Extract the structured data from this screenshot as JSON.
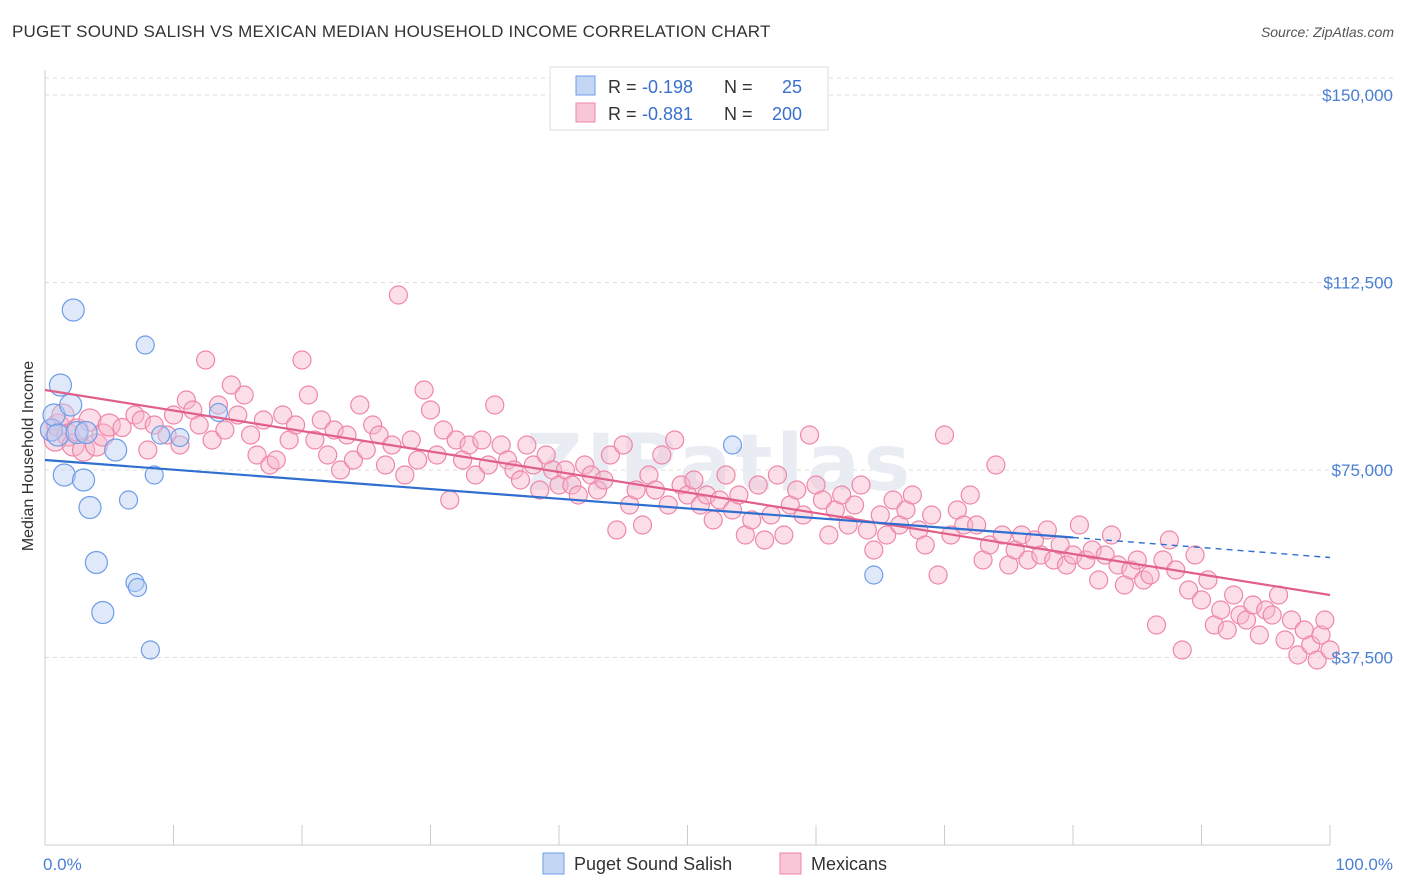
{
  "header": {
    "title": "PUGET SOUND SALISH VS MEXICAN MEDIAN HOUSEHOLD INCOME CORRELATION CHART",
    "source": "Source: ZipAtlas.com"
  },
  "watermark": "ZIPatlas",
  "legend": {
    "rows": [
      {
        "r_label": "R =",
        "r_value": "-0.198",
        "n_label": "N =",
        "n_value": "25"
      },
      {
        "r_label": "R =",
        "r_value": "-0.881",
        "n_label": "N =",
        "n_value": "200"
      }
    ]
  },
  "bottom_legend": [
    "Puget Sound Salish",
    "Mexicans"
  ],
  "chart_data": {
    "type": "scatter",
    "title": "PUGET SOUND SALISH VS MEXICAN MEDIAN HOUSEHOLD INCOME CORRELATION CHART",
    "ylabel": "Median Household Income",
    "xlim": [
      0,
      100
    ],
    "ylim": [
      0,
      155000
    ],
    "x_tick_labels": [
      "0.0%",
      "100.0%"
    ],
    "y_ticks": [
      37500,
      75000,
      112500,
      150000
    ],
    "y_tick_labels": [
      "$37,500",
      "$75,000",
      "$112,500",
      "$150,000"
    ],
    "grid": true,
    "colors": {
      "salish": "#6f9de8",
      "mexicans": "#ef86a8",
      "salish_line": "#2f6fd0",
      "mexicans_line": "#e0608a",
      "axis_text": "#4a7fd4"
    },
    "series": [
      {
        "name": "Puget Sound Salish",
        "trend": {
          "x": [
            0,
            80
          ],
          "y": [
            77000,
            61500
          ],
          "dashed_to": [
            100,
            57500
          ]
        },
        "points": [
          [
            0.5,
            83000
          ],
          [
            0.7,
            86000
          ],
          [
            1.0,
            82000
          ],
          [
            1.2,
            92000
          ],
          [
            1.5,
            74000
          ],
          [
            2.0,
            88000
          ],
          [
            2.2,
            107000
          ],
          [
            2.5,
            82500
          ],
          [
            3.0,
            73000
          ],
          [
            3.2,
            82500
          ],
          [
            3.5,
            67500
          ],
          [
            4.0,
            56500
          ],
          [
            4.5,
            46500
          ],
          [
            5.5,
            79000
          ],
          [
            6.5,
            69000
          ],
          [
            7.0,
            52500
          ],
          [
            7.2,
            51500
          ],
          [
            7.8,
            100000
          ],
          [
            8.2,
            39000
          ],
          [
            8.5,
            74000
          ],
          [
            9.0,
            82000
          ],
          [
            10.5,
            81500
          ],
          [
            13.5,
            86500
          ],
          [
            53.5,
            80000
          ],
          [
            64.5,
            54000
          ]
        ]
      },
      {
        "name": "Mexicans",
        "trend": {
          "x": [
            0,
            100
          ],
          "y": [
            91000,
            50000
          ]
        },
        "points": [
          [
            0.5,
            83000
          ],
          [
            0.8,
            81000
          ],
          [
            1.0,
            84000
          ],
          [
            1.4,
            86000
          ],
          [
            1.8,
            82000
          ],
          [
            2.2,
            80000
          ],
          [
            2.5,
            83000
          ],
          [
            3.0,
            79000
          ],
          [
            3.5,
            85000
          ],
          [
            4.0,
            80000
          ],
          [
            4.5,
            82000
          ],
          [
            5.0,
            84000
          ],
          [
            6.0,
            83500
          ],
          [
            7.0,
            86000
          ],
          [
            7.5,
            85000
          ],
          [
            8.0,
            79000
          ],
          [
            8.5,
            84000
          ],
          [
            9.5,
            82000
          ],
          [
            10.0,
            86000
          ],
          [
            10.5,
            80000
          ],
          [
            11.0,
            89000
          ],
          [
            11.5,
            87000
          ],
          [
            12.0,
            84000
          ],
          [
            12.5,
            97000
          ],
          [
            13.0,
            81000
          ],
          [
            13.5,
            88000
          ],
          [
            14.0,
            83000
          ],
          [
            14.5,
            92000
          ],
          [
            15.0,
            86000
          ],
          [
            15.5,
            90000
          ],
          [
            16.0,
            82000
          ],
          [
            16.5,
            78000
          ],
          [
            17.0,
            85000
          ],
          [
            17.5,
            76000
          ],
          [
            18.0,
            77000
          ],
          [
            18.5,
            86000
          ],
          [
            19.0,
            81000
          ],
          [
            19.5,
            84000
          ],
          [
            20.0,
            97000
          ],
          [
            20.5,
            90000
          ],
          [
            21.0,
            81000
          ],
          [
            21.5,
            85000
          ],
          [
            22.0,
            78000
          ],
          [
            22.5,
            83000
          ],
          [
            23.0,
            75000
          ],
          [
            23.5,
            82000
          ],
          [
            24.0,
            77000
          ],
          [
            24.5,
            88000
          ],
          [
            25.0,
            79000
          ],
          [
            25.5,
            84000
          ],
          [
            26.0,
            82000
          ],
          [
            26.5,
            76000
          ],
          [
            27.0,
            80000
          ],
          [
            27.5,
            110000
          ],
          [
            28.0,
            74000
          ],
          [
            28.5,
            81000
          ],
          [
            29.0,
            77000
          ],
          [
            29.5,
            91000
          ],
          [
            30.0,
            87000
          ],
          [
            30.5,
            78000
          ],
          [
            31.0,
            83000
          ],
          [
            31.5,
            69000
          ],
          [
            32.0,
            81000
          ],
          [
            32.5,
            77000
          ],
          [
            33.0,
            80000
          ],
          [
            33.5,
            74000
          ],
          [
            34.0,
            81000
          ],
          [
            34.5,
            76000
          ],
          [
            35.0,
            88000
          ],
          [
            35.5,
            80000
          ],
          [
            36.0,
            77000
          ],
          [
            36.5,
            75000
          ],
          [
            37.0,
            73000
          ],
          [
            37.5,
            80000
          ],
          [
            38.0,
            76000
          ],
          [
            38.5,
            71000
          ],
          [
            39.0,
            78000
          ],
          [
            39.5,
            75000
          ],
          [
            40.0,
            72000
          ],
          [
            40.5,
            75000
          ],
          [
            41.0,
            72000
          ],
          [
            41.5,
            70000
          ],
          [
            42.0,
            76000
          ],
          [
            42.5,
            74000
          ],
          [
            43.0,
            71000
          ],
          [
            43.5,
            73000
          ],
          [
            44.0,
            78000
          ],
          [
            44.5,
            63000
          ],
          [
            45.0,
            80000
          ],
          [
            45.5,
            68000
          ],
          [
            46.0,
            71000
          ],
          [
            46.5,
            64000
          ],
          [
            47.0,
            74000
          ],
          [
            47.5,
            71000
          ],
          [
            48.0,
            78000
          ],
          [
            48.5,
            68000
          ],
          [
            49.0,
            81000
          ],
          [
            49.5,
            72000
          ],
          [
            50.0,
            70000
          ],
          [
            50.5,
            73000
          ],
          [
            51.0,
            68000
          ],
          [
            51.5,
            70000
          ],
          [
            52.0,
            65000
          ],
          [
            52.5,
            69000
          ],
          [
            53.0,
            74000
          ],
          [
            53.5,
            67000
          ],
          [
            54.0,
            70000
          ],
          [
            54.5,
            62000
          ],
          [
            55.0,
            65000
          ],
          [
            55.5,
            72000
          ],
          [
            56.0,
            61000
          ],
          [
            56.5,
            66000
          ],
          [
            57.0,
            74000
          ],
          [
            57.5,
            62000
          ],
          [
            58.0,
            68000
          ],
          [
            58.5,
            71000
          ],
          [
            59.0,
            66000
          ],
          [
            59.5,
            82000
          ],
          [
            60.0,
            72000
          ],
          [
            60.5,
            69000
          ],
          [
            61.0,
            62000
          ],
          [
            61.5,
            67000
          ],
          [
            62.0,
            70000
          ],
          [
            62.5,
            64000
          ],
          [
            63.0,
            68000
          ],
          [
            63.5,
            72000
          ],
          [
            64.0,
            63000
          ],
          [
            64.5,
            59000
          ],
          [
            65.0,
            66000
          ],
          [
            65.5,
            62000
          ],
          [
            66.0,
            69000
          ],
          [
            66.5,
            64000
          ],
          [
            67.0,
            67000
          ],
          [
            67.5,
            70000
          ],
          [
            68.0,
            63000
          ],
          [
            68.5,
            60000
          ],
          [
            69.0,
            66000
          ],
          [
            69.5,
            54000
          ],
          [
            70.0,
            82000
          ],
          [
            70.5,
            62000
          ],
          [
            71.0,
            67000
          ],
          [
            71.5,
            64000
          ],
          [
            72.0,
            70000
          ],
          [
            72.5,
            64000
          ],
          [
            73.0,
            57000
          ],
          [
            73.5,
            60000
          ],
          [
            74.0,
            76000
          ],
          [
            74.5,
            62000
          ],
          [
            75.0,
            56000
          ],
          [
            75.5,
            59000
          ],
          [
            76.0,
            62000
          ],
          [
            76.5,
            57000
          ],
          [
            77.0,
            61000
          ],
          [
            77.5,
            58000
          ],
          [
            78.0,
            63000
          ],
          [
            78.5,
            57000
          ],
          [
            79.0,
            60000
          ],
          [
            79.5,
            56000
          ],
          [
            80.0,
            58000
          ],
          [
            80.5,
            64000
          ],
          [
            81.0,
            57000
          ],
          [
            81.5,
            59000
          ],
          [
            82.0,
            53000
          ],
          [
            82.5,
            58000
          ],
          [
            83.0,
            62000
          ],
          [
            83.5,
            56000
          ],
          [
            84.0,
            52000
          ],
          [
            84.5,
            55000
          ],
          [
            85.0,
            57000
          ],
          [
            85.5,
            53000
          ],
          [
            86.0,
            54000
          ],
          [
            86.5,
            44000
          ],
          [
            87.0,
            57000
          ],
          [
            87.5,
            61000
          ],
          [
            88.0,
            55000
          ],
          [
            88.5,
            39000
          ],
          [
            89.0,
            51000
          ],
          [
            89.5,
            58000
          ],
          [
            90.0,
            49000
          ],
          [
            90.5,
            53000
          ],
          [
            91.0,
            44000
          ],
          [
            91.5,
            47000
          ],
          [
            92.0,
            43000
          ],
          [
            92.5,
            50000
          ],
          [
            93.0,
            46000
          ],
          [
            93.5,
            45000
          ],
          [
            94.0,
            48000
          ],
          [
            94.5,
            42000
          ],
          [
            95.0,
            47000
          ],
          [
            95.5,
            46000
          ],
          [
            96.0,
            50000
          ],
          [
            96.5,
            41000
          ],
          [
            97.0,
            45000
          ],
          [
            97.5,
            38000
          ],
          [
            98.0,
            43000
          ],
          [
            98.5,
            40000
          ],
          [
            99.0,
            37000
          ],
          [
            99.3,
            42000
          ],
          [
            99.6,
            45000
          ],
          [
            100.0,
            39000
          ]
        ]
      }
    ]
  }
}
